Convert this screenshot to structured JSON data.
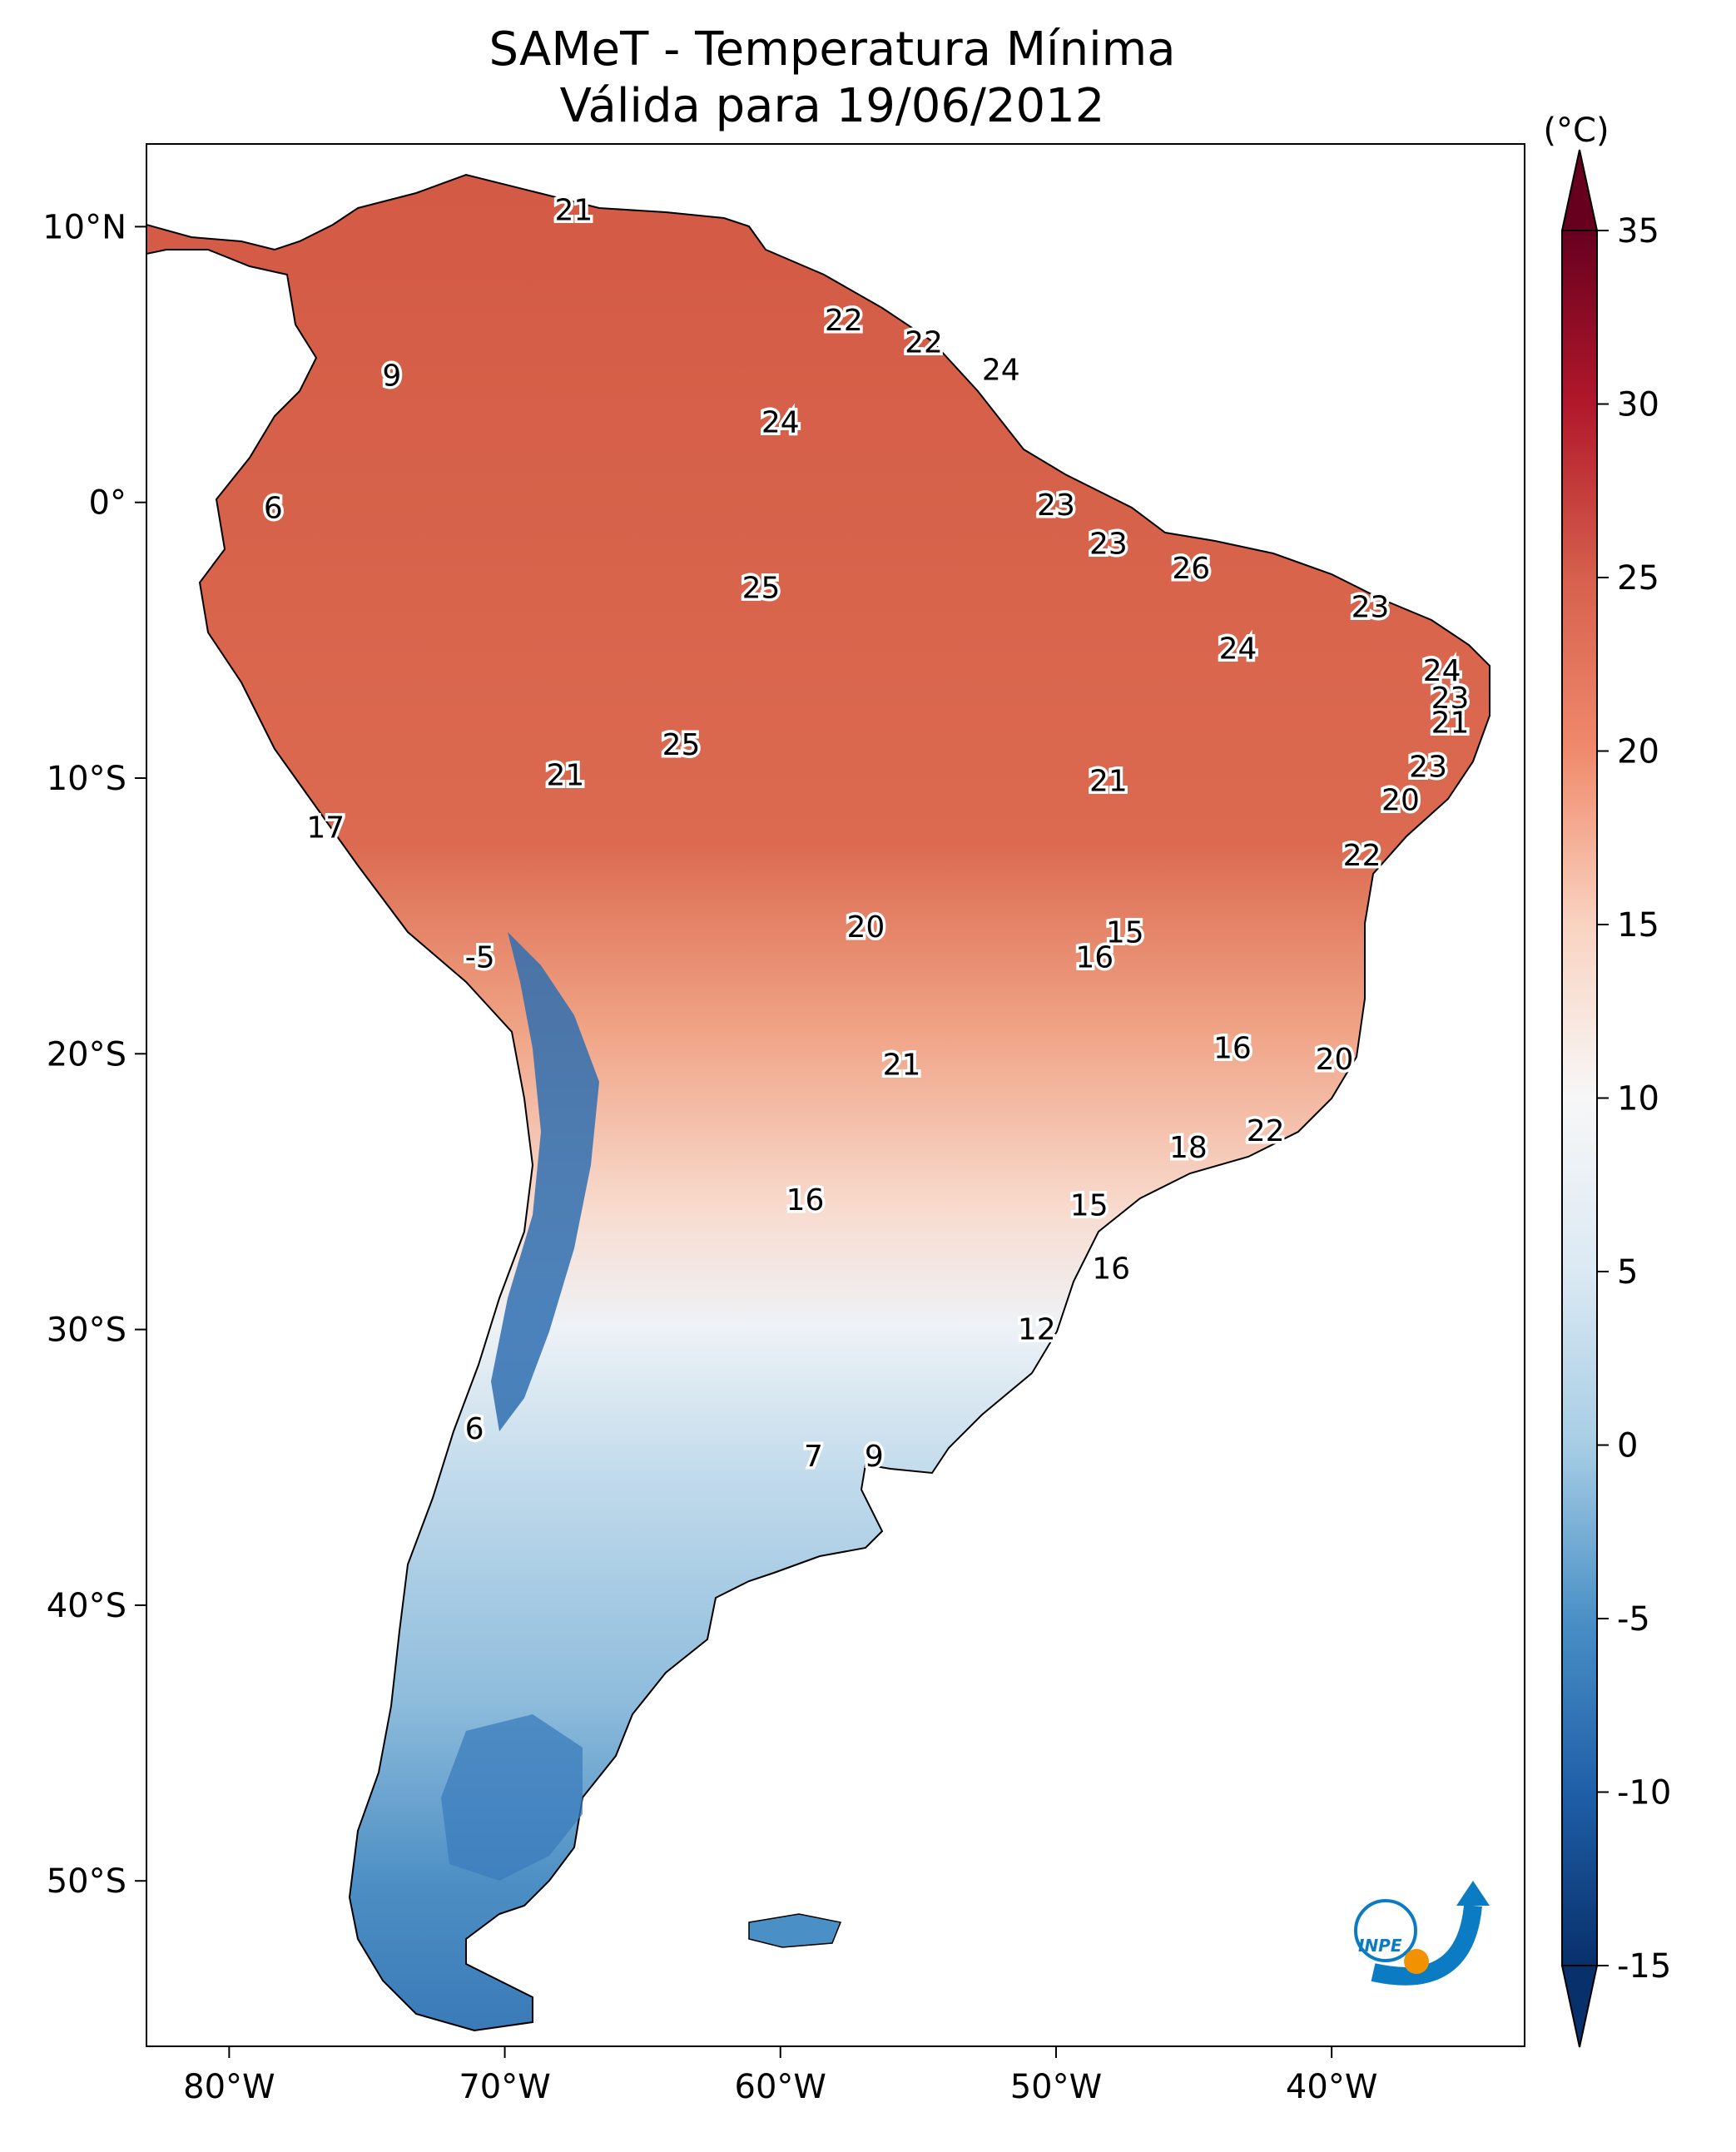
{
  "title": {
    "line1": "SAMeT - Temperatura Mínima",
    "line2": "Válida para 19/06/2012"
  },
  "colorbar": {
    "unit": "(°C)",
    "ticks": [
      "35",
      "30",
      "25",
      "20",
      "15",
      "10",
      "5",
      "0",
      "-5",
      "-10",
      "-15"
    ],
    "range": [
      -15,
      35
    ],
    "colors": {
      "-15": "#08306b",
      "-10": "#1f5fa8",
      "-5": "#4a90c6",
      "0": "#a7cde5",
      "5": "#dbe9f3",
      "10": "#f7f7f7",
      "15": "#f9d3c1",
      "20": "#f08a6c",
      "25": "#d6604d",
      "30": "#b2182b",
      "35": "#67001f"
    }
  },
  "axes": {
    "lon_labels": [
      "80°W",
      "70°W",
      "60°W",
      "50°W",
      "40°W"
    ],
    "lat_labels": [
      "10°N",
      "0°",
      "10°S",
      "20°S",
      "30°S",
      "40°S",
      "50°S"
    ],
    "lon_range": [
      -83,
      -33
    ],
    "lat_range": [
      -56,
      13
    ]
  },
  "logo": {
    "text": "INPE",
    "colors": {
      "primary": "#0b7cc4",
      "accent": "#f39200"
    }
  },
  "temperature_labels": [
    {
      "v": "21",
      "lon": -67.5,
      "lat": 10.6
    },
    {
      "v": "22",
      "lon": -57.7,
      "lat": 6.6
    },
    {
      "v": "22",
      "lon": -54.8,
      "lat": 5.8
    },
    {
      "v": "24",
      "lon": -52.0,
      "lat": 4.8
    },
    {
      "v": "9",
      "lon": -74.1,
      "lat": 4.6
    },
    {
      "v": "24",
      "lon": -60.0,
      "lat": 2.9
    },
    {
      "v": "6",
      "lon": -78.4,
      "lat": -0.2
    },
    {
      "v": "23",
      "lon": -50.0,
      "lat": -0.1
    },
    {
      "v": "23",
      "lon": -48.1,
      "lat": -1.5
    },
    {
      "v": "26",
      "lon": -45.1,
      "lat": -2.4
    },
    {
      "v": "25",
      "lon": -60.7,
      "lat": -3.1
    },
    {
      "v": "23",
      "lon": -38.6,
      "lat": -3.8
    },
    {
      "v": "24",
      "lon": -43.4,
      "lat": -5.3
    },
    {
      "v": "24",
      "lon": -36.0,
      "lat": -6.1
    },
    {
      "v": "23",
      "lon": -35.7,
      "lat": -7.1
    },
    {
      "v": "21",
      "lon": -35.7,
      "lat": -8.0
    },
    {
      "v": "25",
      "lon": -63.6,
      "lat": -8.8
    },
    {
      "v": "23",
      "lon": -36.5,
      "lat": -9.6
    },
    {
      "v": "21",
      "lon": -67.8,
      "lat": -9.9
    },
    {
      "v": "21",
      "lon": -48.1,
      "lat": -10.1
    },
    {
      "v": "20",
      "lon": -37.5,
      "lat": -10.8
    },
    {
      "v": "17",
      "lon": -76.5,
      "lat": -11.8
    },
    {
      "v": "22",
      "lon": -38.9,
      "lat": -12.8
    },
    {
      "v": "20",
      "lon": -56.9,
      "lat": -15.4
    },
    {
      "v": "15",
      "lon": -47.5,
      "lat": -15.6
    },
    {
      "v": "-5",
      "lon": -70.9,
      "lat": -16.5
    },
    {
      "v": "16",
      "lon": -48.6,
      "lat": -16.5
    },
    {
      "v": "16",
      "lon": -43.6,
      "lat": -19.8
    },
    {
      "v": "21",
      "lon": -55.6,
      "lat": -20.4
    },
    {
      "v": "20",
      "lon": -39.9,
      "lat": -20.2
    },
    {
      "v": "22",
      "lon": -42.4,
      "lat": -22.8
    },
    {
      "v": "18",
      "lon": -45.2,
      "lat": -23.4
    },
    {
      "v": "16",
      "lon": -59.1,
      "lat": -25.3
    },
    {
      "v": "15",
      "lon": -48.8,
      "lat": -25.5
    },
    {
      "v": "16",
      "lon": -48.0,
      "lat": -27.8
    },
    {
      "v": "12",
      "lon": -50.7,
      "lat": -30.0
    },
    {
      "v": "6",
      "lon": -71.1,
      "lat": -33.6
    },
    {
      "v": "7",
      "lon": -58.8,
      "lat": -34.6
    },
    {
      "v": "9",
      "lon": -56.6,
      "lat": -34.6
    }
  ]
}
